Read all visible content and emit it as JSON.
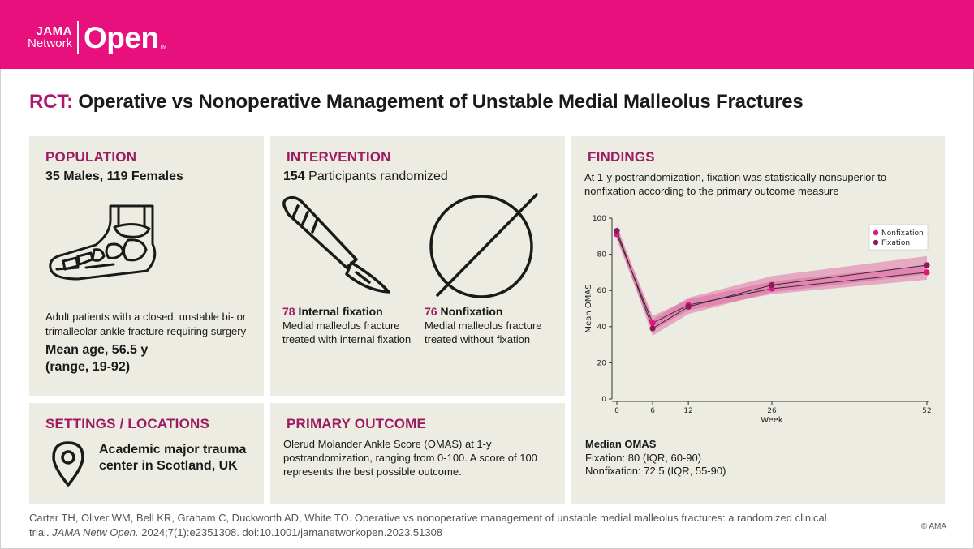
{
  "brand": {
    "jama": "JAMA",
    "network": "Network",
    "open": "Open",
    "tm": "TM"
  },
  "title": {
    "prefix": "RCT:",
    "main": "Operative vs Nonoperative Management of Unstable Medial Malleolus Fractures"
  },
  "population": {
    "heading": "POPULATION",
    "subtitle": "35 Males, 119 Females",
    "description": "Adult patients with a closed, unstable bi- or trimalleolar ankle fracture requiring surgery",
    "age_line1": "Mean age, 56.5 y",
    "age_line2": "(range, 19-92)"
  },
  "intervention": {
    "heading": "INTERVENTION",
    "count": "154",
    "count_label": " Participants randomized",
    "arm1_n": "78",
    "arm1_label": " Internal fixation",
    "arm1_desc": "Medial malleolus fracture treated with internal fixation",
    "arm2_n": "76",
    "arm2_label": " Nonfixation",
    "arm2_desc": "Medial malleolus fracture treated without fixation"
  },
  "settings": {
    "heading": "SETTINGS / LOCATIONS",
    "text": "Academic major trauma center in Scotland, UK"
  },
  "outcome": {
    "heading": "PRIMARY OUTCOME",
    "text": "Olerud Molander Ankle Score (OMAS) at 1-y postrandomization, ranging from 0-100. A score of 100 represents the best possible outcome."
  },
  "findings": {
    "heading": "FINDINGS",
    "text": "At 1-y postrandomization, fixation was statistically nonsuperior to nonfixation according to the primary outcome measure",
    "median_title": "Median OMAS",
    "median_fixation": "Fixation: 80 (IQR, 60-90)",
    "median_nonfixation": "Nonfixation: 72.5 (IQR, 55-90)"
  },
  "chart_data": {
    "type": "line",
    "xlabel": "Week",
    "ylabel": "Mean OMAS",
    "x": [
      0,
      6,
      12,
      26,
      52
    ],
    "ylim": [
      0,
      100
    ],
    "yticks": [
      0,
      20,
      40,
      60,
      80,
      100
    ],
    "xticks": [
      0,
      6,
      12,
      26,
      52
    ],
    "legend_position": "top-right",
    "colors": {
      "nonfixation": "#e0157f",
      "fixation": "#8b1a5a",
      "band": "#dc5c9c"
    },
    "series": [
      {
        "name": "Nonfixation",
        "values": [
          91,
          42,
          52,
          61,
          70
        ],
        "lower": [
          88,
          38,
          49,
          58,
          66
        ],
        "upper": [
          94,
          46,
          55,
          65,
          74
        ]
      },
      {
        "name": "Fixation",
        "values": [
          93,
          39,
          51,
          63,
          74
        ],
        "lower": [
          90,
          35,
          47,
          59,
          69
        ],
        "upper": [
          96,
          44,
          56,
          68,
          79
        ]
      }
    ]
  },
  "citation": {
    "text": "Carter TH, Oliver WM, Bell KR, Graham C, Duckworth AD, White TO. Operative vs nonoperative management of unstable medial malleolus fractures: a randomized clinical trial. ",
    "journal": "JAMA Netw Open.",
    "rest": " 2024;7(1):e2351308. doi:10.1001/jamanetworkopen.2023.51308",
    "copyright": "© AMA"
  }
}
